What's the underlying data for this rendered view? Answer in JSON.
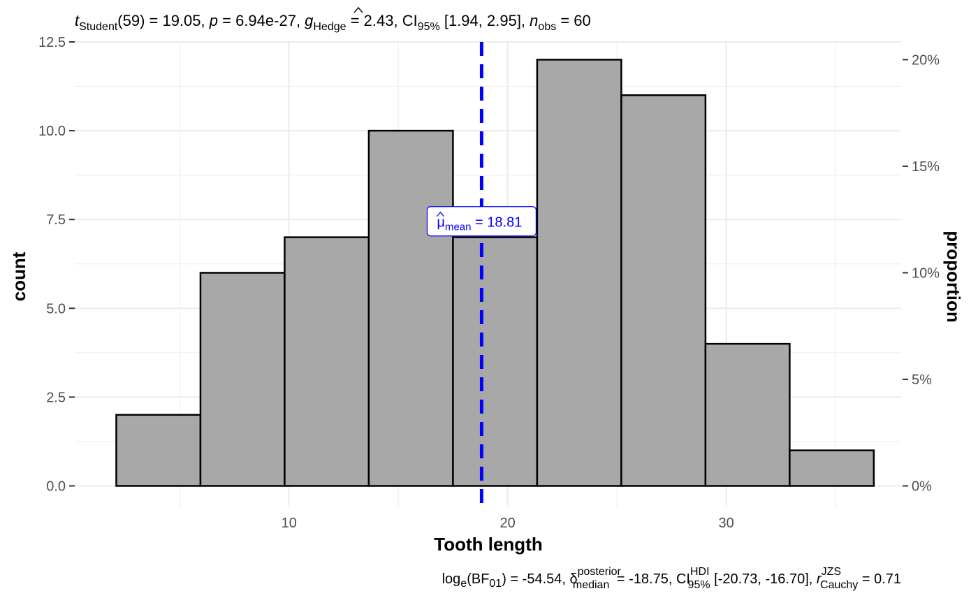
{
  "chart_data": {
    "type": "bar",
    "subtitle": {
      "t_label": "t",
      "t_sub": "Student",
      "t_rest": "(59) = 19.05, ",
      "p_label": "p",
      "p_rest": " = 6.94e-27, ",
      "g_label": "g",
      "g_sub": "Hedge",
      "g_rest": " = 2.43, CI",
      "ci_sub": "95%",
      "ci_rest": " [1.94, 2.95], ",
      "n_label": "n",
      "n_sub": "obs",
      "n_rest": " = 60"
    },
    "caption": {
      "log_label": "log",
      "log_sub": "e",
      "bf_open": "(BF",
      "bf_sub": "01",
      "bf_rest": ") = -54.54, ",
      "delta_label": "δ",
      "delta_sup": "posterior",
      "delta_sub": "median",
      "delta_rest": " = -18.75, CI",
      "ci_sup": "HDI",
      "ci_sub": "95%",
      "ci_rest": " [-20.73, -16.70], ",
      "r_label": "r",
      "r_sup": "JZS",
      "r_sub": "Cauchy",
      "r_rest": " = 0.71"
    },
    "xlabel": "Tooth length",
    "ylabel": "count",
    "y2label": "proportion",
    "xlim": [
      0.2,
      38.0
    ],
    "ylim": [
      -0.6,
      12.5
    ],
    "x_ticks": [
      10,
      20,
      30
    ],
    "x_tick_labels": [
      "10",
      "20",
      "30"
    ],
    "y_ticks": [
      0,
      2.5,
      5,
      7.5,
      10,
      12.5
    ],
    "y_tick_labels": [
      "0.0",
      "2.5",
      "5.0",
      "7.5",
      "10.0",
      "12.5"
    ],
    "y2_ticks": [
      0,
      3,
      6,
      9,
      12
    ],
    "y2_tick_labels": [
      "0%",
      "5%",
      "10%",
      "15%",
      "20%"
    ],
    "bins": [
      {
        "xmin": 2.1,
        "xmax": 5.95,
        "count": 2
      },
      {
        "xmin": 5.95,
        "xmax": 9.8,
        "count": 6
      },
      {
        "xmin": 9.8,
        "xmax": 13.65,
        "count": 7
      },
      {
        "xmin": 13.65,
        "xmax": 17.5,
        "count": 10
      },
      {
        "xmin": 17.5,
        "xmax": 21.35,
        "count": 7
      },
      {
        "xmin": 21.35,
        "xmax": 25.2,
        "count": 12
      },
      {
        "xmin": 25.2,
        "xmax": 29.05,
        "count": 11
      },
      {
        "xmin": 29.05,
        "xmax": 32.9,
        "count": 4
      },
      {
        "xmin": 32.9,
        "xmax": 36.75,
        "count": 1
      }
    ],
    "mean_line": {
      "x": 18.81,
      "label_mu": "μ",
      "label_sub": "mean",
      "label_value": " = 18.81",
      "label_y": 7.45
    },
    "colors": {
      "bar_fill": "#a8a8a8",
      "bar_stroke": "#000000",
      "mean_line": "#0000ff",
      "grid": "#ebebeb",
      "text": "#000000",
      "tick_text": "#4d4d4d"
    },
    "grid": true,
    "legend": "none"
  }
}
